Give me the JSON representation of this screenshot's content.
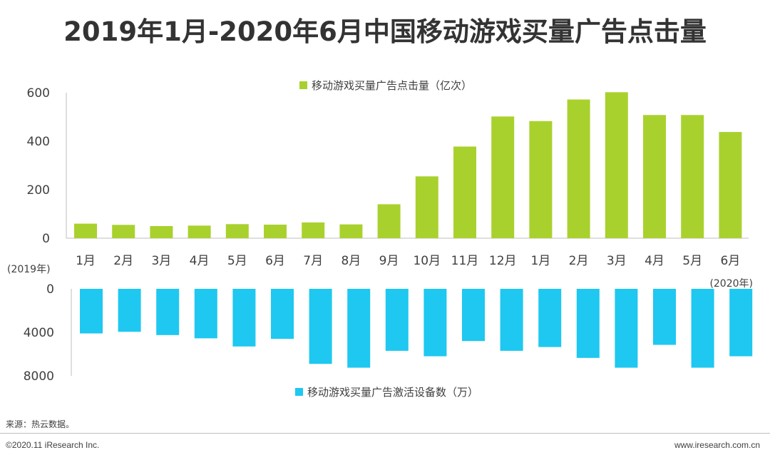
{
  "title": "2019年1月-2020年6月中国移动游戏买量广告点击量",
  "chart_data": [
    {
      "type": "bar",
      "name": "clicks",
      "series_name": "移动游戏买量广告点击量（亿次）",
      "categories": [
        "1月",
        "2月",
        "3月",
        "4月",
        "5月",
        "6月",
        "7月",
        "8月",
        "9月",
        "10月",
        "11月",
        "12月",
        "1月",
        "2月",
        "3月",
        "4月",
        "5月",
        "6月"
      ],
      "values": [
        60,
        55,
        50,
        52,
        58,
        56,
        65,
        57,
        140,
        255,
        378,
        502,
        483,
        572,
        602,
        508,
        508,
        438
      ],
      "ylim": [
        0,
        600
      ],
      "yticks": [
        "0",
        "200",
        "400",
        "600"
      ],
      "color": "#A9D12E",
      "year_labels": [
        "(2019年)",
        "(2020年)"
      ]
    },
    {
      "type": "bar",
      "name": "devices",
      "series_name": "移动游戏买量广告激活设备数（万）",
      "orientation": "downward",
      "values": [
        4100,
        3950,
        4250,
        4550,
        5300,
        4600,
        6900,
        7250,
        5700,
        6200,
        4800,
        5700,
        5350,
        6350,
        7250,
        5150,
        7250,
        6200
      ],
      "ylim": [
        0,
        8000
      ],
      "yticks": [
        "0",
        "4000",
        "8000"
      ],
      "color": "#1EC8F0"
    }
  ],
  "footer": {
    "source": "来源：热云数据。",
    "copyright": "©2020.11 iResearch Inc.",
    "website": "www.iresearch.com.cn"
  }
}
